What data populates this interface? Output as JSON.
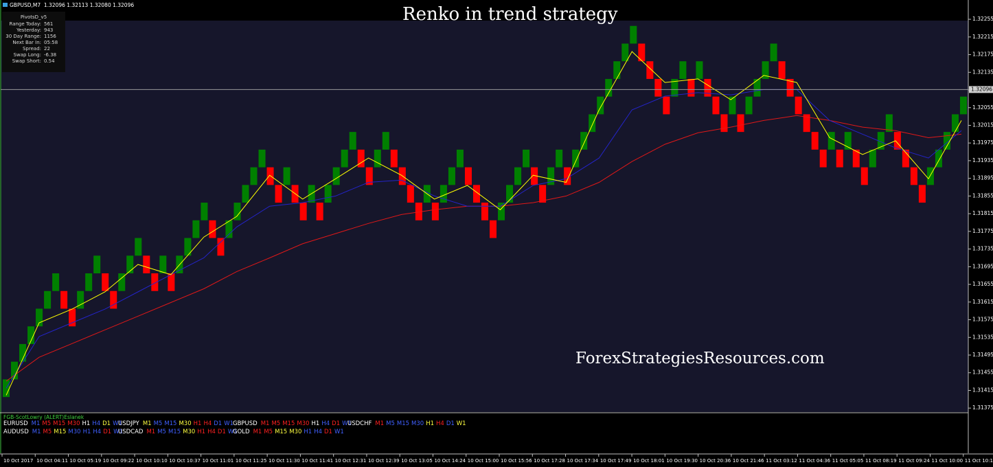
{
  "header": {
    "title": "GBPUSD,M7  1.32096 1.32113 1.32080 1.32096"
  },
  "pivots": {
    "title": "PivotsD_v5",
    "rows": [
      [
        "Range Today:",
        "561"
      ],
      [
        "Yesterday:",
        "943"
      ],
      [
        "30 Day Range:",
        "1156"
      ],
      [
        "Next Bar In:",
        "05:58"
      ],
      [
        "Spread:",
        "22"
      ],
      [
        "Swap Long:",
        "-6.38"
      ],
      [
        "Swap Short:",
        "0.54"
      ]
    ]
  },
  "chart_data": {
    "type": "renko",
    "title": "Renko in trend strategy",
    "watermark": "ForexStrategiesResources.com",
    "up_color": "#008000",
    "down_color": "#ff0000",
    "bricks": [
      [
        1.314,
        1.3144
      ],
      [
        1.3144,
        1.3148
      ],
      [
        1.3148,
        1.3152
      ],
      [
        1.3152,
        1.3156
      ],
      [
        1.3156,
        1.316
      ],
      [
        1.316,
        1.3164
      ],
      [
        1.3164,
        1.3168
      ],
      [
        1.3164,
        1.316
      ],
      [
        1.316,
        1.3156
      ],
      [
        1.316,
        1.3164
      ],
      [
        1.3164,
        1.3168
      ],
      [
        1.3168,
        1.3172
      ],
      [
        1.3168,
        1.3164
      ],
      [
        1.3164,
        1.316
      ],
      [
        1.3164,
        1.3168
      ],
      [
        1.3168,
        1.3172
      ],
      [
        1.3172,
        1.3176
      ],
      [
        1.3172,
        1.3168
      ],
      [
        1.3168,
        1.3164
      ],
      [
        1.3168,
        1.3172
      ],
      [
        1.3168,
        1.3164
      ],
      [
        1.3168,
        1.3172
      ],
      [
        1.3172,
        1.3176
      ],
      [
        1.3176,
        1.318
      ],
      [
        1.318,
        1.3184
      ],
      [
        1.318,
        1.3176
      ],
      [
        1.3176,
        1.3172
      ],
      [
        1.3176,
        1.318
      ],
      [
        1.318,
        1.3184
      ],
      [
        1.3184,
        1.3188
      ],
      [
        1.3188,
        1.3192
      ],
      [
        1.3192,
        1.3196
      ],
      [
        1.3192,
        1.3188
      ],
      [
        1.3188,
        1.3184
      ],
      [
        1.3188,
        1.3192
      ],
      [
        1.3188,
        1.3184
      ],
      [
        1.3184,
        1.318
      ],
      [
        1.3184,
        1.3188
      ],
      [
        1.3184,
        1.318
      ],
      [
        1.3184,
        1.3188
      ],
      [
        1.3188,
        1.3192
      ],
      [
        1.3192,
        1.3196
      ],
      [
        1.3196,
        1.32
      ],
      [
        1.3196,
        1.3192
      ],
      [
        1.3192,
        1.3188
      ],
      [
        1.3192,
        1.3196
      ],
      [
        1.3196,
        1.32
      ],
      [
        1.3196,
        1.3192
      ],
      [
        1.3192,
        1.3188
      ],
      [
        1.3188,
        1.3184
      ],
      [
        1.3184,
        1.318
      ],
      [
        1.3184,
        1.3188
      ],
      [
        1.3184,
        1.318
      ],
      [
        1.3184,
        1.3188
      ],
      [
        1.3188,
        1.3192
      ],
      [
        1.3192,
        1.3196
      ],
      [
        1.3192,
        1.3188
      ],
      [
        1.3188,
        1.3184
      ],
      [
        1.3184,
        1.318
      ],
      [
        1.318,
        1.3176
      ],
      [
        1.318,
        1.3184
      ],
      [
        1.3184,
        1.3188
      ],
      [
        1.3188,
        1.3192
      ],
      [
        1.3192,
        1.3196
      ],
      [
        1.3192,
        1.3188
      ],
      [
        1.3188,
        1.3184
      ],
      [
        1.3188,
        1.3192
      ],
      [
        1.3192,
        1.3196
      ],
      [
        1.3192,
        1.3188
      ],
      [
        1.3192,
        1.3196
      ],
      [
        1.3196,
        1.32
      ],
      [
        1.32,
        1.3204
      ],
      [
        1.3204,
        1.3208
      ],
      [
        1.3208,
        1.3212
      ],
      [
        1.3212,
        1.3216
      ],
      [
        1.3216,
        1.322
      ],
      [
        1.322,
        1.3224
      ],
      [
        1.322,
        1.3216
      ],
      [
        1.3216,
        1.3212
      ],
      [
        1.3212,
        1.3208
      ],
      [
        1.3208,
        1.3204
      ],
      [
        1.3208,
        1.3212
      ],
      [
        1.3212,
        1.3216
      ],
      [
        1.3212,
        1.3208
      ],
      [
        1.3212,
        1.3216
      ],
      [
        1.3212,
        1.3208
      ],
      [
        1.3208,
        1.3204
      ],
      [
        1.3204,
        1.32
      ],
      [
        1.3204,
        1.3208
      ],
      [
        1.3204,
        1.32
      ],
      [
        1.3204,
        1.3208
      ],
      [
        1.3208,
        1.3212
      ],
      [
        1.3212,
        1.3216
      ],
      [
        1.3216,
        1.322
      ],
      [
        1.3216,
        1.3212
      ],
      [
        1.3212,
        1.3208
      ],
      [
        1.3208,
        1.3204
      ],
      [
        1.3204,
        1.32
      ],
      [
        1.32,
        1.3196
      ],
      [
        1.3196,
        1.3192
      ],
      [
        1.3196,
        1.32
      ],
      [
        1.3196,
        1.3192
      ],
      [
        1.3196,
        1.32
      ],
      [
        1.3196,
        1.3192
      ],
      [
        1.3192,
        1.3188
      ],
      [
        1.3192,
        1.3196
      ],
      [
        1.3196,
        1.32
      ],
      [
        1.32,
        1.3204
      ],
      [
        1.32,
        1.3196
      ],
      [
        1.3196,
        1.3192
      ],
      [
        1.3192,
        1.3188
      ],
      [
        1.3188,
        1.3184
      ],
      [
        1.3188,
        1.3192
      ],
      [
        1.3192,
        1.3196
      ],
      [
        1.3196,
        1.32
      ],
      [
        1.32,
        1.3204
      ],
      [
        1.3204,
        1.3208
      ]
    ],
    "lines": [
      {
        "color": "#e01818",
        "values": [
          1.31436,
          1.3149,
          1.31521,
          1.31552,
          1.31583,
          1.31614,
          1.31645,
          1.31684,
          1.31715,
          1.31747,
          1.3177,
          1.31793,
          1.31813,
          1.31824,
          1.31832,
          1.31832,
          1.3184,
          1.31855,
          1.31886,
          1.31933,
          1.31972,
          1.31998,
          1.32011,
          1.32026,
          1.32037,
          1.32026,
          1.32011,
          1.32003,
          1.31987,
          1.31995
        ]
      },
      {
        "color": "#2424c8",
        "values": [
          1.3142,
          1.31537,
          1.31568,
          1.31599,
          1.31638,
          1.31677,
          1.31715,
          1.31785,
          1.31832,
          1.3184,
          1.31855,
          1.31886,
          1.31891,
          1.31855,
          1.31832,
          1.31832,
          1.31879,
          1.31894,
          1.31941,
          1.3205,
          1.32081,
          1.32089,
          1.32084,
          1.32096,
          1.32096,
          1.32026,
          1.31995,
          1.31964,
          1.31941,
          1.32003
        ]
      },
      {
        "color": "#ffff00",
        "values": [
          1.31404,
          1.31568,
          1.31599,
          1.31638,
          1.317,
          1.31677,
          1.31762,
          1.31809,
          1.31902,
          1.31848,
          1.31894,
          1.31941,
          1.31902,
          1.31848,
          1.31879,
          1.31824,
          1.31902,
          1.31886,
          1.3205,
          1.32182,
          1.32112,
          1.3212,
          1.32073,
          1.32128,
          1.32112,
          1.31987,
          1.31949,
          1.3198,
          1.31894,
          1.32026
        ]
      }
    ],
    "price_line": 1.32096,
    "ylim": [
      1.31366,
      1.32294
    ],
    "yticks": [
      1.31375,
      1.31415,
      1.31455,
      1.31495,
      1.31535,
      1.31575,
      1.31615,
      1.31655,
      1.31695,
      1.31735,
      1.31775,
      1.31815,
      1.31855,
      1.31895,
      1.31935,
      1.31975,
      1.32015,
      1.32055,
      1.32095,
      1.32135,
      1.32175,
      1.32215,
      1.32255
    ],
    "time_labels": [
      "10 Oct 2017",
      "10 Oct 04:11",
      "10 Oct 05:19",
      "10 Oct 09:22",
      "10 Oct 10:10",
      "10 Oct 10:37",
      "10 Oct 11:01",
      "10 Oct 11:25",
      "10 Oct 11:30",
      "10 Oct 11:41",
      "10 Oct 12:31",
      "10 Oct 12:39",
      "10 Oct 13:05",
      "10 Oct 14:24",
      "10 Oct 15:00",
      "10 Oct 15:56",
      "10 Oct 17:28",
      "10 Oct 17:34",
      "10 Oct 17:49",
      "10 Oct 18:01",
      "10 Oct 19:30",
      "10 Oct 20:36",
      "10 Oct 21:46",
      "11 Oct 03:12",
      "11 Oct 04:36",
      "11 Oct 05:05",
      "11 Oct 08:19",
      "11 Oct 09:24",
      "11 Oct 10:00",
      "11 Oct 10:1"
    ]
  },
  "signal_panel": {
    "title": "FGB-ScotLowry (ALERT)Eslanek",
    "rows": [
      [
        {
          "symbol": "EURUSD",
          "frames": [
            {
              "text": "M1",
              "color": "#4060ff"
            },
            {
              "text": "M5",
              "color": "#ff2020"
            },
            {
              "text": "M15",
              "color": "#ff2020"
            },
            {
              "text": "M30",
              "color": "#ff2020"
            },
            {
              "text": "H1",
              "color": "#ffffff"
            },
            {
              "text": "H4",
              "color": "#4060ff"
            },
            {
              "text": "D1",
              "color": "#ffff40"
            },
            {
              "text": "W1",
              "color": "#4060ff"
            }
          ]
        },
        {
          "symbol": "USDJPY",
          "frames": [
            {
              "text": "M1",
              "color": "#ffff40"
            },
            {
              "text": "M5",
              "color": "#4060ff"
            },
            {
              "text": "M15",
              "color": "#4060ff"
            },
            {
              "text": "M30",
              "color": "#ffff40"
            },
            {
              "text": "H1",
              "color": "#ff2020"
            },
            {
              "text": "H4",
              "color": "#ff2020"
            },
            {
              "text": "D1",
              "color": "#4060ff"
            },
            {
              "text": "W1",
              "color": "#4060ff"
            }
          ]
        },
        {
          "symbol": "GBPUSD",
          "frames": [
            {
              "text": "M1",
              "color": "#ff2020"
            },
            {
              "text": "M5",
              "color": "#ff2020"
            },
            {
              "text": "M15",
              "color": "#ff2020"
            },
            {
              "text": "M30",
              "color": "#ff2020"
            },
            {
              "text": "H1",
              "color": "#ffffff"
            },
            {
              "text": "H4",
              "color": "#4060ff"
            },
            {
              "text": "D1",
              "color": "#ff2020"
            },
            {
              "text": "W1",
              "color": "#4060ff"
            }
          ]
        },
        {
          "symbol": "USDCHF",
          "frames": [
            {
              "text": "M1",
              "color": "#ff2020"
            },
            {
              "text": "M5",
              "color": "#4060ff"
            },
            {
              "text": "M15",
              "color": "#4060ff"
            },
            {
              "text": "M30",
              "color": "#4060ff"
            },
            {
              "text": "H1",
              "color": "#ffff40"
            },
            {
              "text": "H4",
              "color": "#ff2020"
            },
            {
              "text": "D1",
              "color": "#4060ff"
            },
            {
              "text": "W1",
              "color": "#ffff40"
            }
          ]
        }
      ],
      [
        {
          "symbol": "AUDUSD",
          "frames": [
            {
              "text": "M1",
              "color": "#4060ff"
            },
            {
              "text": "M5",
              "color": "#ff2020"
            },
            {
              "text": "M15",
              "color": "#ffff40"
            },
            {
              "text": "M30",
              "color": "#4060ff"
            },
            {
              "text": "H1",
              "color": "#4060ff"
            },
            {
              "text": "H4",
              "color": "#4060ff"
            },
            {
              "text": "D1",
              "color": "#ff2020"
            },
            {
              "text": "W1",
              "color": "#4060ff"
            }
          ]
        },
        {
          "symbol": "USDCAD",
          "frames": [
            {
              "text": "M1",
              "color": "#ff2020"
            },
            {
              "text": "M5",
              "color": "#4060ff"
            },
            {
              "text": "M15",
              "color": "#4060ff"
            },
            {
              "text": "M30",
              "color": "#ffff40"
            },
            {
              "text": "H1",
              "color": "#ff2020"
            },
            {
              "text": "H4",
              "color": "#ff2020"
            },
            {
              "text": "D1",
              "color": "#ff2020"
            },
            {
              "text": "W1",
              "color": "#4060ff"
            }
          ]
        },
        {
          "symbol": "GOLD",
          "frames": [
            {
              "text": "M1",
              "color": "#ff2020"
            },
            {
              "text": "M5",
              "color": "#ff2020"
            },
            {
              "text": "M15",
              "color": "#ffff40"
            },
            {
              "text": "M30",
              "color": "#ffff40"
            },
            {
              "text": "H1",
              "color": "#4060ff"
            },
            {
              "text": "H4",
              "color": "#4060ff"
            },
            {
              "text": "D1",
              "color": "#ff2020"
            },
            {
              "text": "W1",
              "color": "#4060ff"
            }
          ]
        }
      ]
    ]
  }
}
